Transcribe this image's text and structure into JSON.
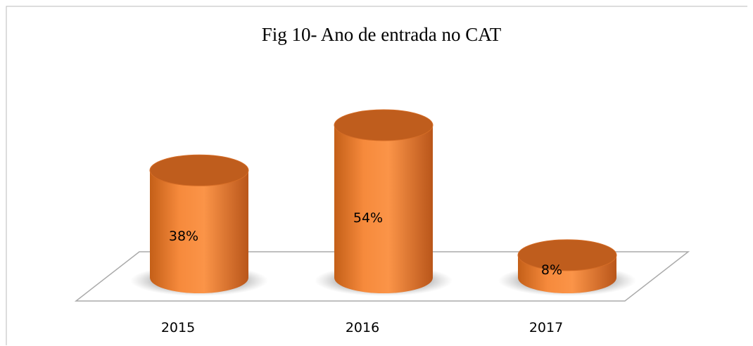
{
  "chart_data": {
    "type": "bar",
    "title": "Fig 10- Ano de entrada no CAT",
    "categories": [
      "2015",
      "2016",
      "2017"
    ],
    "values": [
      38,
      54,
      8
    ],
    "value_labels": [
      "38%",
      "54%",
      "8%"
    ],
    "color": "#f07f2e"
  }
}
